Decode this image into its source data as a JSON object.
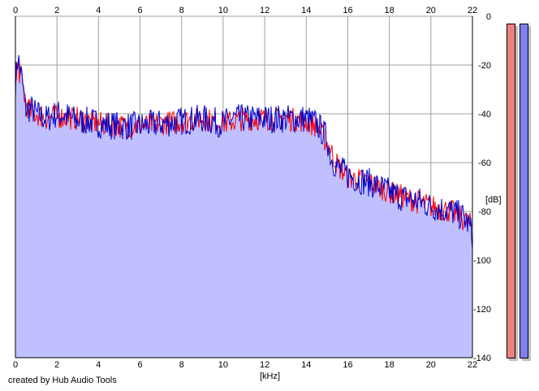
{
  "chart_data": {
    "type": "area",
    "xlabel": "[kHz]",
    "ylabel": "[dB]",
    "xlim": [
      0,
      22
    ],
    "ylim": [
      -140,
      0
    ],
    "x_ticks": [
      0,
      2,
      4,
      6,
      8,
      10,
      12,
      14,
      16,
      18,
      20,
      22
    ],
    "y_ticks": [
      0,
      -20,
      -40,
      -60,
      -80,
      -100,
      -120,
      -140
    ],
    "grid": true,
    "fill_color": "#c0c0ff",
    "series": [
      {
        "color": "#0000cc",
        "x": [
          0.0,
          0.1,
          0.2,
          0.3,
          0.5,
          0.8,
          1.0,
          1.5,
          2.0,
          2.5,
          3.0,
          3.5,
          4.0,
          5.0,
          6.0,
          7.0,
          8.0,
          9.0,
          10.0,
          10.5,
          11.0,
          12.0,
          13.0,
          14.0,
          14.5,
          15.0,
          15.2,
          15.5,
          16.0,
          16.5,
          17.0,
          17.5,
          18.0,
          18.5,
          19.0,
          19.5,
          20.0,
          20.5,
          21.0,
          21.5,
          21.8,
          22.0
        ],
        "values": [
          -28,
          -17,
          -20,
          -25,
          -38,
          -38,
          -40,
          -42,
          -40,
          -41,
          -43,
          -43,
          -44,
          -45,
          -45,
          -44,
          -43,
          -42,
          -44,
          -42,
          -42,
          -42,
          -42,
          -42,
          -44,
          -50,
          -58,
          -62,
          -65,
          -67,
          -68,
          -70,
          -72,
          -74,
          -75,
          -76,
          -78,
          -79,
          -80,
          -82,
          -85,
          -90
        ]
      },
      {
        "color": "#ff0000",
        "x": [
          0.0,
          0.1,
          0.3,
          0.5,
          0.8,
          1.0,
          1.5,
          2.0,
          3.0,
          4.0,
          5.0,
          6.0,
          7.0,
          8.0,
          9.0,
          10.0,
          11.0,
          12.0,
          13.0,
          14.0,
          14.5,
          15.0,
          15.5,
          16.0,
          17.0,
          18.0,
          19.0,
          20.0,
          21.0,
          22.0
        ],
        "values": [
          -30,
          -20,
          -26,
          -36,
          -40,
          -40,
          -42,
          -41,
          -42,
          -44,
          -45,
          -45,
          -44,
          -43,
          -42,
          -44,
          -42,
          -42,
          -42,
          -43,
          -45,
          -52,
          -61,
          -66,
          -68,
          -72,
          -75,
          -78,
          -80,
          -86
        ]
      }
    ]
  },
  "footer": {
    "credit": "created by Hub Audio Tools"
  },
  "meters": {
    "left_color": "#f08080",
    "right_color": "#8080f0"
  }
}
